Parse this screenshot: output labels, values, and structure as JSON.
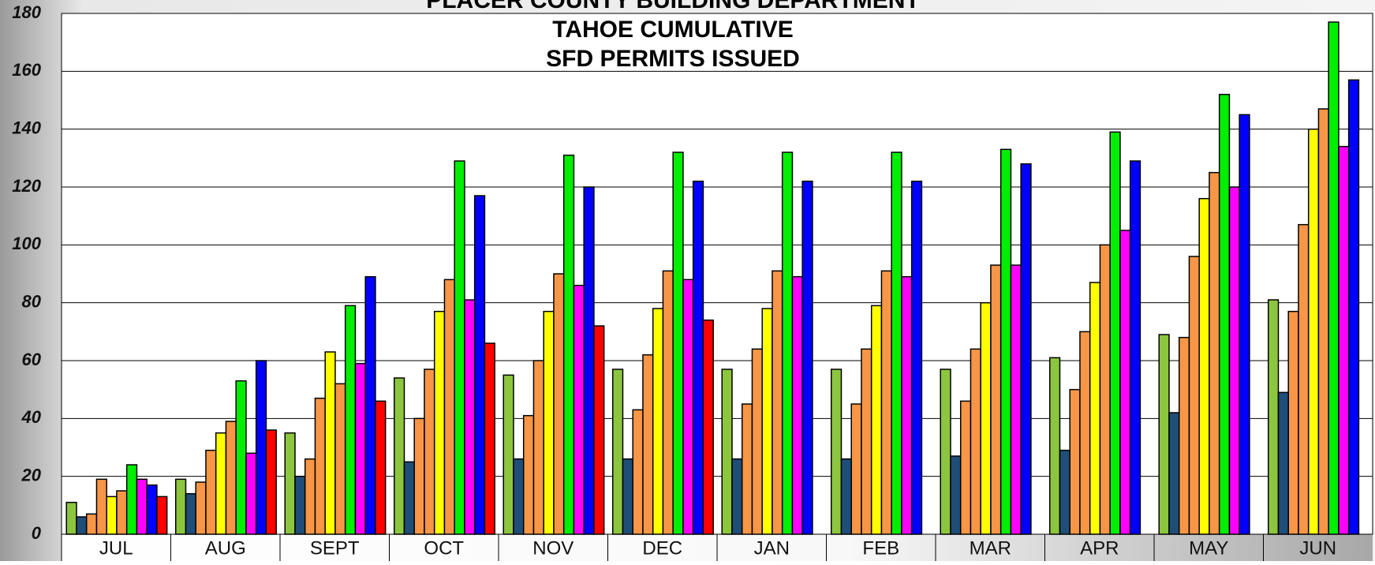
{
  "chart_data": {
    "type": "bar",
    "title": [
      "PLACER COUNTY BUILDING DEPARTMENT",
      "TAHOE CUMULATIVE",
      "SFD PERMITS ISSUED"
    ],
    "categories": [
      "JUL",
      "AUG",
      "SEPT",
      "OCT",
      "NOV",
      "DEC",
      "JAN",
      "FEB",
      "MAR",
      "APR",
      "MAY",
      "JUN"
    ],
    "series": [
      {
        "color": "#8cc63f",
        "values": [
          11,
          19,
          35,
          54,
          55,
          57,
          57,
          57,
          57,
          61,
          69,
          81
        ]
      },
      {
        "color": "#1f4e79",
        "values": [
          6,
          14,
          20,
          25,
          26,
          26,
          26,
          26,
          27,
          29,
          42,
          49
        ]
      },
      {
        "color": "#f79646",
        "values": [
          7,
          18,
          26,
          40,
          41,
          43,
          45,
          45,
          46,
          50,
          68,
          77
        ]
      },
      {
        "color": "#f79646",
        "values": [
          19,
          29,
          47,
          57,
          60,
          62,
          64,
          64,
          64,
          70,
          96,
          107
        ]
      },
      {
        "color": "#ffff00",
        "values": [
          13,
          35,
          63,
          77,
          77,
          78,
          78,
          79,
          80,
          87,
          116,
          140
        ]
      },
      {
        "color": "#f79646",
        "values": [
          15,
          39,
          52,
          88,
          90,
          91,
          91,
          91,
          93,
          100,
          125,
          147
        ]
      },
      {
        "color": "#00ee00",
        "values": [
          24,
          53,
          79,
          129,
          131,
          132,
          132,
          132,
          133,
          139,
          152,
          177
        ]
      },
      {
        "color": "#ff00ff",
        "values": [
          19,
          28,
          59,
          81,
          86,
          88,
          89,
          89,
          93,
          105,
          120,
          134
        ]
      },
      {
        "color": "#0000ff",
        "values": [
          17,
          60,
          89,
          117,
          120,
          122,
          122,
          122,
          128,
          129,
          145,
          157
        ]
      },
      {
        "color": "#ff0000",
        "values": [
          13,
          36,
          46,
          66,
          72,
          74,
          null,
          null,
          null,
          null,
          null,
          null
        ]
      }
    ],
    "ylim": [
      0,
      180
    ],
    "yticks": [
      0,
      20,
      40,
      60,
      80,
      100,
      120,
      140,
      160,
      180
    ],
    "grid": true
  }
}
